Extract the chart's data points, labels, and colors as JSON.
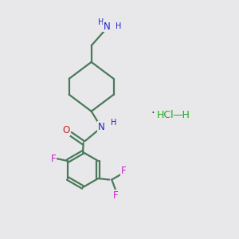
{
  "background_color": "#e8e8ea",
  "bond_color": "#4a7a5a",
  "bond_width": 1.6,
  "atom_colors": {
    "N": "#2020cc",
    "O": "#cc2020",
    "F": "#cc20cc",
    "Cl": "#20aa20",
    "H": "#2020cc"
  },
  "font_size": 8.5,
  "small_font": 7.0,
  "figsize": [
    3.0,
    3.0
  ],
  "dpi": 100,
  "xlim": [
    0,
    10
  ],
  "ylim": [
    0,
    10
  ]
}
